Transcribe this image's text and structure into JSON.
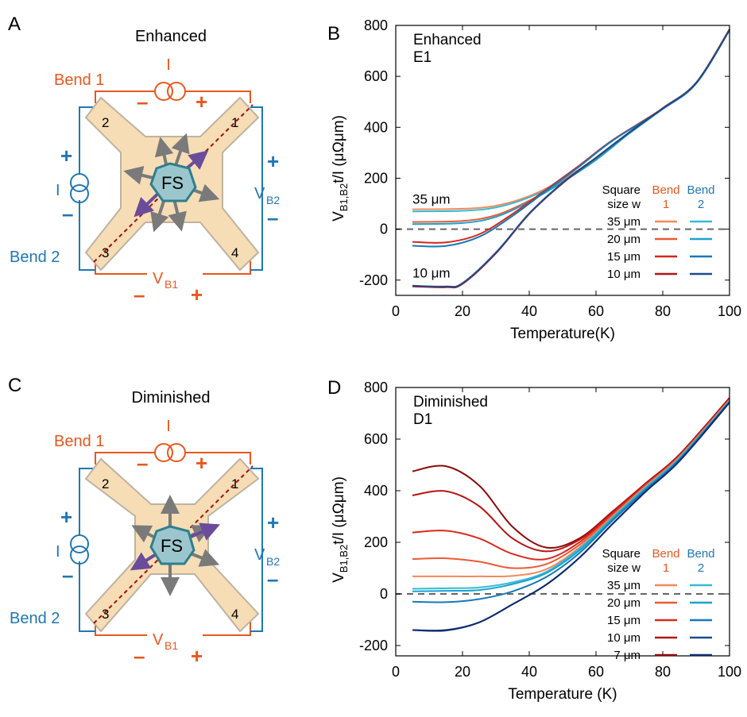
{
  "colors": {
    "bend1": "#E8571E",
    "bend2": "#1F77B4",
    "sample": "#F6DDB5",
    "sample_edge": "#BFB2A0",
    "fs_fill": "#9CC6CE",
    "fs_edge": "#2E7F8C",
    "arrow_gray": "#7A7A7A",
    "arrow_purple": "#6B4C9A",
    "diag": "#A01010"
  },
  "panels": {
    "A": {
      "letter": "A",
      "title": "Enhanced",
      "bend1": "Bend 1",
      "bend2": "Bend 2",
      "current": "I",
      "vb1": "V",
      "vb1_sub": "B1",
      "vb2": "V",
      "vb2_sub": "B2",
      "minus": "–",
      "plus": "+",
      "fs": "FS",
      "c1": "1",
      "c2": "2",
      "c3": "3",
      "c4": "4"
    },
    "C": {
      "letter": "C",
      "title": "Diminished",
      "bend1": "Bend 1",
      "bend2": "Bend 2",
      "current": "I",
      "vb1": "V",
      "vb1_sub": "B1",
      "vb2": "V",
      "vb2_sub": "B2",
      "minus": "–",
      "plus": "+",
      "fs": "FS",
      "c1": "1",
      "c2": "2",
      "c3": "3",
      "c4": "4"
    }
  },
  "chart_data": [
    {
      "id": "B",
      "letter": "B",
      "type": "line",
      "text_lines": [
        "Enhanced",
        "E1"
      ],
      "xlabel": "Temperature(K)",
      "ylabel_main": "V",
      "ylabel_sub": "B1,B2",
      "ylabel_rest": "t/I (μΩμm)",
      "xlim": [
        0,
        100
      ],
      "ylim": [
        -260,
        800
      ],
      "xticks": [
        0,
        20,
        40,
        60,
        80,
        100
      ],
      "yticks": [
        -200,
        0,
        200,
        400,
        600,
        800
      ],
      "zero_line": true,
      "annotations": [
        {
          "text": "35 μm",
          "x": 5,
          "y": 100
        },
        {
          "text": "10 μm",
          "x": 5,
          "y": -190
        }
      ],
      "legend": {
        "header_left": [
          "Square",
          "size w"
        ],
        "header_b1": [
          "Bend",
          "1"
        ],
        "header_b2": [
          "Bend",
          "2"
        ],
        "rows": [
          "35 μm",
          "20 μm",
          "15 μm",
          "10 μm"
        ]
      },
      "series": [
        {
          "size": "35 μm",
          "bend": "1",
          "color": "#F28A5B",
          "points": [
            [
              5,
              78
            ],
            [
              20,
              80
            ],
            [
              30,
              92
            ],
            [
              40,
              130
            ],
            [
              50,
              195
            ],
            [
              60,
              280
            ],
            [
              70,
              380
            ],
            [
              80,
              475
            ],
            [
              90,
              575
            ],
            [
              100,
              785
            ]
          ]
        },
        {
          "size": "35 μm",
          "bend": "2",
          "color": "#33BBD6",
          "points": [
            [
              5,
              70
            ],
            [
              20,
              72
            ],
            [
              30,
              85
            ],
            [
              40,
              125
            ],
            [
              50,
              190
            ],
            [
              60,
              278
            ],
            [
              70,
              378
            ],
            [
              80,
              473
            ],
            [
              90,
              573
            ],
            [
              100,
              783
            ]
          ]
        },
        {
          "size": "20 μm",
          "bend": "1",
          "color": "#EC5A36",
          "points": [
            [
              5,
              28
            ],
            [
              20,
              32
            ],
            [
              30,
              55
            ],
            [
              40,
              112
            ],
            [
              50,
              188
            ],
            [
              60,
              275
            ],
            [
              70,
              378
            ],
            [
              80,
              474
            ],
            [
              90,
              574
            ],
            [
              100,
              784
            ]
          ]
        },
        {
          "size": "20 μm",
          "bend": "2",
          "color": "#1BA2CF",
          "points": [
            [
              5,
              20
            ],
            [
              20,
              24
            ],
            [
              30,
              48
            ],
            [
              40,
              108
            ],
            [
              50,
              185
            ],
            [
              60,
              272
            ],
            [
              70,
              376
            ],
            [
              80,
              472
            ],
            [
              90,
              572
            ],
            [
              100,
              782
            ]
          ]
        },
        {
          "size": "15 μm",
          "bend": "1",
          "color": "#D6261C",
          "points": [
            [
              5,
              -50
            ],
            [
              15,
              -52
            ],
            [
              25,
              -20
            ],
            [
              35,
              60
            ],
            [
              45,
              155
            ],
            [
              55,
              250
            ],
            [
              65,
              350
            ],
            [
              80,
              474
            ],
            [
              90,
              574
            ],
            [
              100,
              784
            ]
          ]
        },
        {
          "size": "15 μm",
          "bend": "2",
          "color": "#1679B8",
          "points": [
            [
              5,
              -65
            ],
            [
              15,
              -66
            ],
            [
              25,
              -30
            ],
            [
              35,
              52
            ],
            [
              45,
              150
            ],
            [
              55,
              246
            ],
            [
              65,
              348
            ],
            [
              80,
              472
            ],
            [
              90,
              572
            ],
            [
              100,
              782
            ]
          ]
        },
        {
          "size": "10 μm",
          "bend": "1",
          "color": "#B01515",
          "points": [
            [
              5,
              -225
            ],
            [
              15,
              -228
            ],
            [
              20,
              -215
            ],
            [
              30,
              -95
            ],
            [
              40,
              60
            ],
            [
              50,
              180
            ],
            [
              60,
              280
            ],
            [
              70,
              380
            ],
            [
              80,
              475
            ],
            [
              90,
              575
            ],
            [
              100,
              784
            ]
          ]
        },
        {
          "size": "10 μm",
          "bend": "2",
          "color": "#1A4B8F",
          "points": [
            [
              5,
              -222
            ],
            [
              15,
              -225
            ],
            [
              20,
              -212
            ],
            [
              30,
              -92
            ],
            [
              40,
              62
            ],
            [
              50,
              182
            ],
            [
              60,
              281
            ],
            [
              70,
              380
            ],
            [
              80,
              474
            ],
            [
              90,
              574
            ],
            [
              100,
              782
            ]
          ]
        }
      ]
    },
    {
      "id": "D",
      "letter": "D",
      "type": "line",
      "text_lines": [
        "Diminished",
        "D1"
      ],
      "xlabel": "Temperature (K)",
      "ylabel_main": "V",
      "ylabel_sub": "B1,B2",
      "ylabel_rest": "t/I (μΩμm)",
      "xlim": [
        0,
        100
      ],
      "ylim": [
        -240,
        800
      ],
      "xticks": [
        0,
        20,
        40,
        60,
        80,
        100
      ],
      "yticks": [
        -200,
        0,
        200,
        400,
        600,
        800
      ],
      "zero_line": true,
      "annotations": [],
      "legend": {
        "header_left": [
          "Square",
          "size w"
        ],
        "header_b1": [
          "Bend",
          "1"
        ],
        "header_b2": [
          "Bend",
          "2"
        ],
        "rows": [
          "35 μm",
          "20 μm",
          "15 μm",
          "10 μm",
          "7 μm"
        ]
      },
      "series": [
        {
          "size": "7 μm",
          "bend": "1",
          "color": "#8C0A0A",
          "points": [
            [
              5,
              475
            ],
            [
              15,
              495
            ],
            [
              25,
              420
            ],
            [
              35,
              260
            ],
            [
              45,
              180
            ],
            [
              55,
              215
            ],
            [
              65,
              320
            ],
            [
              75,
              430
            ],
            [
              85,
              540
            ],
            [
              100,
              760
            ]
          ]
        },
        {
          "size": "10 μm",
          "bend": "1",
          "color": "#B81414",
          "points": [
            [
              5,
              382
            ],
            [
              15,
              398
            ],
            [
              25,
              340
            ],
            [
              35,
              215
            ],
            [
              45,
              165
            ],
            [
              55,
              210
            ],
            [
              65,
              318
            ],
            [
              75,
              428
            ],
            [
              85,
              538
            ],
            [
              100,
              758
            ]
          ]
        },
        {
          "size": "15 μm",
          "bend": "1",
          "color": "#D92A1E",
          "points": [
            [
              5,
              238
            ],
            [
              15,
              245
            ],
            [
              25,
              215
            ],
            [
              35,
              155
            ],
            [
              45,
              135
            ],
            [
              55,
              200
            ],
            [
              65,
              312
            ],
            [
              75,
              425
            ],
            [
              85,
              535
            ],
            [
              100,
              755
            ]
          ]
        },
        {
          "size": "20 μm",
          "bend": "1",
          "color": "#EC5A36",
          "points": [
            [
              5,
              135
            ],
            [
              15,
              138
            ],
            [
              25,
              125
            ],
            [
              35,
              100
            ],
            [
              45,
              115
            ],
            [
              55,
              190
            ],
            [
              65,
              305
            ],
            [
              75,
              420
            ],
            [
              85,
              532
            ],
            [
              100,
              752
            ]
          ]
        },
        {
          "size": "35 μm",
          "bend": "1",
          "color": "#F28A5B",
          "points": [
            [
              5,
              68
            ],
            [
              15,
              68
            ],
            [
              25,
              68
            ],
            [
              35,
              70
            ],
            [
              45,
              95
            ],
            [
              55,
              180
            ],
            [
              65,
              300
            ],
            [
              75,
              418
            ],
            [
              85,
              530
            ],
            [
              100,
              750
            ]
          ]
        },
        {
          "size": "35 μm",
          "bend": "2",
          "color": "#33BBD6",
          "points": [
            [
              5,
              20
            ],
            [
              15,
              22
            ],
            [
              25,
              25
            ],
            [
              35,
              45
            ],
            [
              45,
              85
            ],
            [
              55,
              175
            ],
            [
              65,
              296
            ],
            [
              75,
              414
            ],
            [
              85,
              527
            ],
            [
              100,
              748
            ]
          ]
        },
        {
          "size": "20 μm",
          "bend": "2",
          "color": "#1BA2CF",
          "points": [
            [
              5,
              10
            ],
            [
              15,
              12
            ],
            [
              25,
              15
            ],
            [
              35,
              38
            ],
            [
              45,
              80
            ],
            [
              55,
              168
            ],
            [
              65,
              292
            ],
            [
              75,
              410
            ],
            [
              85,
              524
            ],
            [
              100,
              746
            ]
          ]
        },
        {
          "size": "15 μm",
          "bend": "2",
          "color": "#1679B8",
          "points": [
            [
              5,
              -30
            ],
            [
              15,
              -32
            ],
            [
              25,
              -20
            ],
            [
              35,
              10
            ],
            [
              45,
              65
            ],
            [
              55,
              158
            ],
            [
              65,
              285
            ],
            [
              75,
              405
            ],
            [
              85,
              520
            ],
            [
              100,
              744
            ]
          ]
        },
        {
          "size": "10 μm",
          "bend": "2",
          "color": "#1A4B8F",
          "points": [
            [
              5,
              -140
            ],
            [
              15,
              -142
            ],
            [
              25,
              -110
            ],
            [
              35,
              -40
            ],
            [
              45,
              35
            ],
            [
              55,
              140
            ],
            [
              65,
              272
            ],
            [
              75,
              398
            ],
            [
              85,
              515
            ],
            [
              100,
              742
            ]
          ]
        },
        {
          "size": "7 μm",
          "bend": "2",
          "color": "#0E2A6B",
          "points": [
            [
              5,
              -140
            ],
            [
              15,
              -140
            ],
            [
              25,
              -110
            ],
            [
              35,
              -40
            ],
            [
              45,
              35
            ],
            [
              55,
              140
            ],
            [
              65,
              272
            ],
            [
              75,
              398
            ],
            [
              85,
              515
            ],
            [
              100,
              742
            ]
          ]
        }
      ]
    }
  ]
}
